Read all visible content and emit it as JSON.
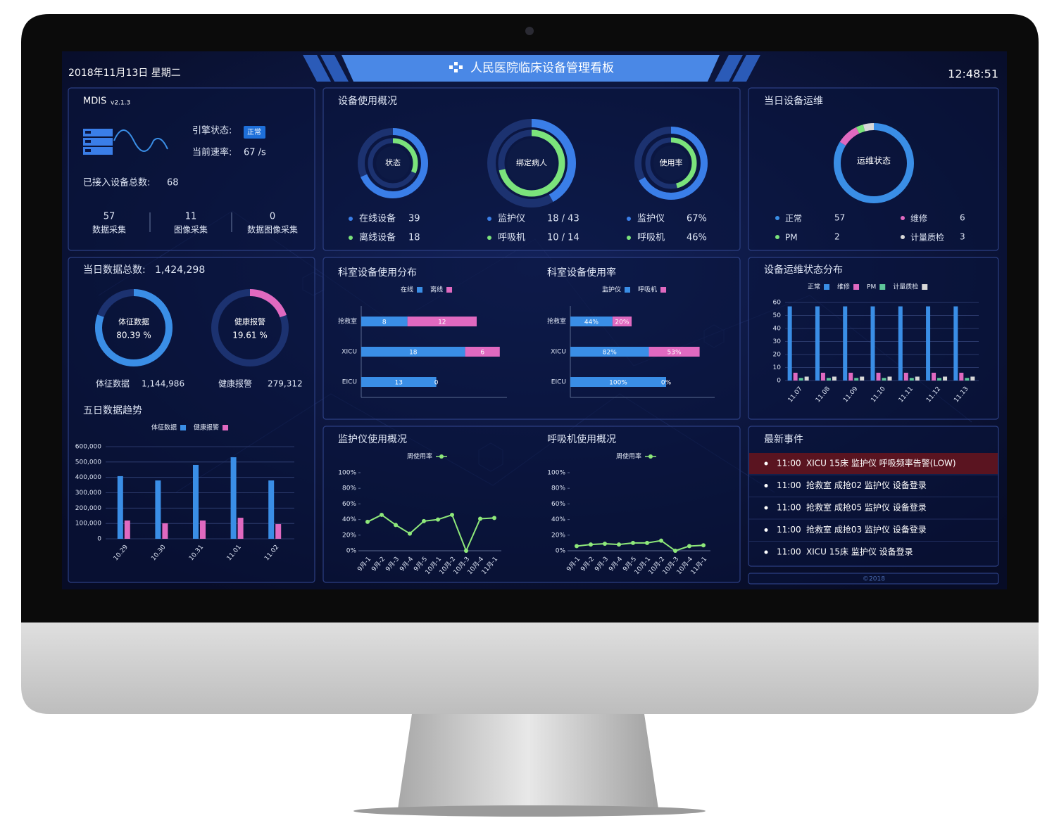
{
  "header": {
    "date": "2018年11月13日 星期二",
    "title": "人民医院临床设备管理看板",
    "time": "12:48:51"
  },
  "system": {
    "name": "MDIS",
    "version": "v2.1.3",
    "engine_label": "引擎状态:",
    "engine_status": "正常",
    "rate_label": "当前速率:",
    "rate": "67 /s",
    "total_label": "已接入设备总数:",
    "total": 68,
    "stats": [
      {
        "value": 57,
        "label": "数据采集"
      },
      {
        "value": 11,
        "label": "图像采集"
      },
      {
        "value": 0,
        "label": "数据图像采集"
      }
    ]
  },
  "usage": {
    "title": "设备使用概况",
    "colors": [
      "#3a7ee8",
      "#7be37b"
    ],
    "donuts": [
      {
        "center": "状态",
        "items": [
          {
            "label": "在线设备",
            "value": 39
          },
          {
            "label": "离线设备",
            "value": 18
          }
        ]
      },
      {
        "center": "绑定病人",
        "items": [
          {
            "label": "监护仪",
            "value": 18,
            "total": 43,
            "value_label": "18 / 43"
          },
          {
            "label": "呼吸机",
            "value": 10,
            "total": 14,
            "value_label": "10 / 14"
          }
        ]
      },
      {
        "center": "使用率",
        "items": [
          {
            "label": "监护仪",
            "value": 67,
            "value_label": "67%"
          },
          {
            "label": "呼吸机",
            "value": 46,
            "value_label": "46%"
          }
        ]
      }
    ]
  },
  "maintenance": {
    "title": "当日设备运维",
    "center": "运维状态",
    "items": [
      {
        "label": "正常",
        "value": 57,
        "color": "#3a8ee6"
      },
      {
        "label": "维修",
        "value": 6,
        "color": "#e069c0"
      },
      {
        "label": "PM",
        "value": 2,
        "color": "#7be37b"
      },
      {
        "label": "计量质检",
        "value": 3,
        "color": "#d8d8d8"
      }
    ]
  },
  "data_total": {
    "title": "当日数据总数:",
    "total": "1,424,298",
    "gauges": [
      {
        "name": "体征数据",
        "percent": 80.39,
        "percent_label": "80.39 %",
        "count": "1,144,986",
        "color": "#3a8ee6"
      },
      {
        "name": "健康报警",
        "percent": 19.61,
        "percent_label": "19.61 %",
        "count": "279,312",
        "color": "#e069c0"
      }
    ]
  },
  "trend": {
    "type": "bar",
    "title": "五日数据趋势",
    "categories": [
      "10.29",
      "10.30",
      "10.31",
      "11.01",
      "11.02"
    ],
    "series": [
      {
        "name": "体征数据",
        "color": "#3a8ee6",
        "values": [
          408000,
          380000,
          481000,
          531000,
          380000
        ]
      },
      {
        "name": "健康报警",
        "color": "#e069c0",
        "values": [
          119000,
          101000,
          119000,
          137000,
          96000
        ]
      }
    ],
    "ylim": [
      0,
      600000
    ],
    "yticks": [
      0,
      {
        "value": 100000,
        "label": "100,000"
      },
      {
        "value": 200000,
        "label": "200,000"
      },
      {
        "value": 300000,
        "label": "300,000"
      },
      {
        "value": 400000,
        "label": "400,000"
      },
      {
        "value": 500000,
        "label": "500,000"
      },
      {
        "value": 600000,
        "label": "600,000"
      }
    ],
    "grid": true
  },
  "dept_usage": {
    "type": "bar",
    "orientation": "horizontal",
    "stacked": true,
    "title": "科室设备使用分布",
    "categories": [
      "抢救室",
      "XICU",
      "EICU"
    ],
    "series": [
      {
        "name": "在线",
        "color": "#3a8ee6",
        "values": [
          8,
          18,
          13
        ]
      },
      {
        "name": "离线",
        "color": "#e069c0",
        "values": [
          12,
          6,
          0
        ]
      }
    ]
  },
  "dept_rate": {
    "type": "bar",
    "orientation": "horizontal",
    "stacked": true,
    "title": "科室设备使用率",
    "categories": [
      "抢救室",
      "XICU",
      "EICU"
    ],
    "series": [
      {
        "name": "监护仪",
        "color": "#3a8ee6",
        "values": [
          44,
          82,
          100
        ],
        "value_labels": [
          "44%",
          "82%",
          "100%"
        ]
      },
      {
        "name": "呼吸机",
        "color": "#e069c0",
        "values": [
          20,
          53,
          0
        ],
        "value_labels": [
          "20%",
          "53%",
          "0%"
        ]
      }
    ]
  },
  "status_dist": {
    "type": "bar",
    "title": "设备运维状态分布",
    "categories": [
      "11.07",
      "11.08",
      "11.09",
      "11.10",
      "11.11",
      "11.12",
      "11.13"
    ],
    "series": [
      {
        "name": "正常",
        "color": "#3a8ee6",
        "values": [
          57,
          57,
          57,
          57,
          57,
          57,
          57
        ]
      },
      {
        "name": "维修",
        "color": "#e069c0",
        "values": [
          6,
          6,
          6,
          6,
          6,
          6,
          6
        ]
      },
      {
        "name": "PM",
        "color": "#5ec79a",
        "values": [
          2,
          2,
          2,
          2,
          2,
          2,
          2
        ]
      },
      {
        "name": "计量质检",
        "color": "#d8d8d8",
        "values": [
          3,
          3,
          3,
          3,
          3,
          3,
          3
        ]
      }
    ],
    "ylim": [
      0,
      60
    ],
    "yticks": [
      0,
      10,
      20,
      30,
      40,
      50,
      60
    ],
    "grid": true
  },
  "monitor_usage": {
    "type": "line",
    "title": "监护仪使用概况",
    "categories": [
      "9月-1",
      "9月-2",
      "9月-3",
      "9月-4",
      "9月-5",
      "10月-1",
      "10月-2",
      "10月-3",
      "10月-4",
      "11月-1"
    ],
    "series": [
      {
        "name": "周使用率",
        "color": "#8ee87a",
        "values": [
          37,
          46,
          33,
          22,
          38,
          40,
          46,
          0,
          41,
          42
        ]
      }
    ],
    "ylim": [
      0,
      100
    ],
    "yticks": [
      {
        "value": 0,
        "label": "0%"
      },
      {
        "value": 20,
        "label": "20%"
      },
      {
        "value": 40,
        "label": "40%"
      },
      {
        "value": 60,
        "label": "60%"
      },
      {
        "value": 80,
        "label": "80%"
      },
      {
        "value": 100,
        "label": "100%"
      }
    ],
    "grid": false
  },
  "ventilator_usage": {
    "type": "line",
    "title": "呼吸机使用概况",
    "categories": [
      "9月-1",
      "9月-2",
      "9月-3",
      "9月-4",
      "9月-5",
      "10月-1",
      "10月-2",
      "10月-3",
      "10月-4",
      "11月-1"
    ],
    "series": [
      {
        "name": "周使用率",
        "color": "#8ee87a",
        "values": [
          6,
          8,
          9,
          8,
          10,
          10,
          13,
          0,
          6,
          7
        ]
      }
    ],
    "ylim": [
      0,
      100
    ],
    "yticks": [
      {
        "value": 0,
        "label": "0%"
      },
      {
        "value": 20,
        "label": "20%"
      },
      {
        "value": 40,
        "label": "40%"
      },
      {
        "value": 60,
        "label": "60%"
      },
      {
        "value": 80,
        "label": "80%"
      },
      {
        "value": 100,
        "label": "100%"
      }
    ],
    "grid": false
  },
  "events": {
    "title": "最新事件",
    "items": [
      {
        "time": "11:00",
        "text": "XICU 15床 监护仪 呼吸频率告警(LOW)",
        "alert": true
      },
      {
        "time": "11:00",
        "text": "抢救室 成抢02 监护仪 设备登录",
        "alert": false
      },
      {
        "time": "11:00",
        "text": "抢救室 成抢05 监护仪 设备登录",
        "alert": false
      },
      {
        "time": "11:00",
        "text": "抢救室 成抢03 监护仪 设备登录",
        "alert": false
      },
      {
        "time": "11:00",
        "text": "XICU 15床 监护仪 设备登录",
        "alert": false
      }
    ]
  },
  "footer": "©2018"
}
